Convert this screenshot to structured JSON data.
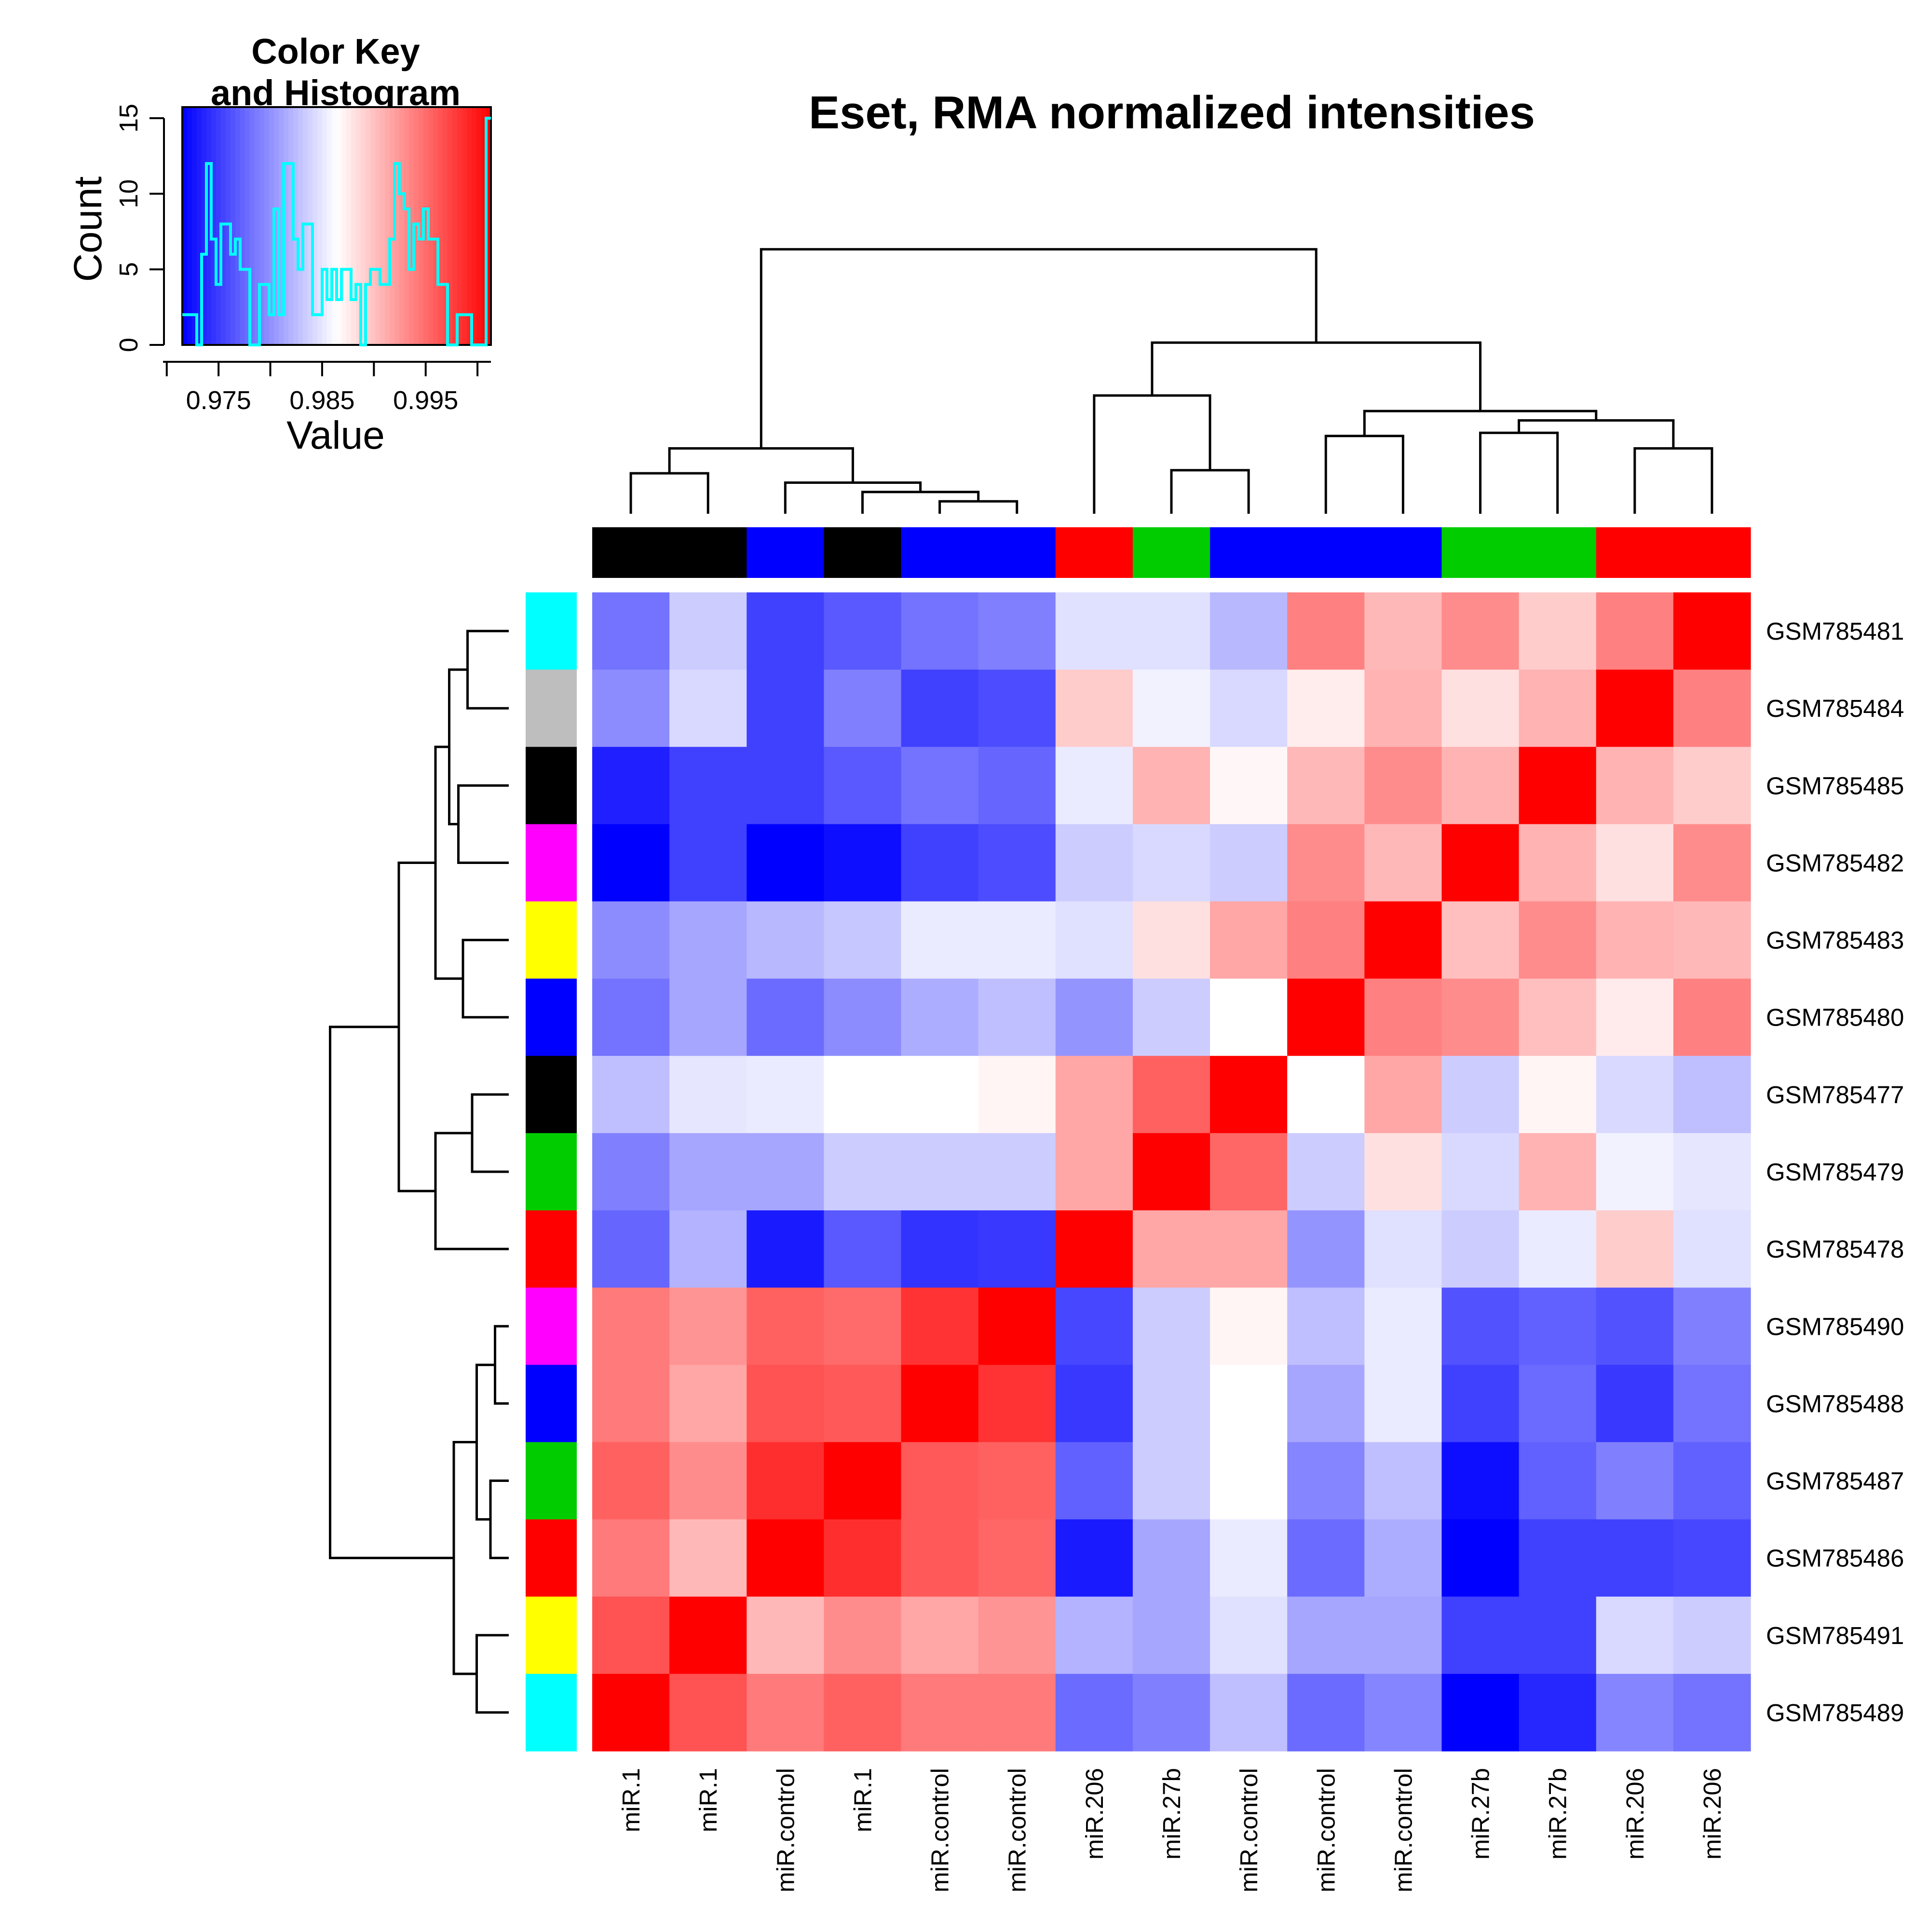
{
  "chart_data": {
    "type": "heatmap",
    "title": "Eset, RMA normalized intensities",
    "columns": [
      "miR.1",
      "miR.1",
      "miR.control",
      "miR.1",
      "miR.control",
      "miR.control",
      "miR.206",
      "miR.27b",
      "miR.control",
      "miR.control",
      "miR.control",
      "miR.27b",
      "miR.27b",
      "miR.206",
      "miR.206"
    ],
    "rows": [
      "GSM785481",
      "GSM785484",
      "GSM785485",
      "GSM785482",
      "GSM785483",
      "GSM785480",
      "GSM785477",
      "GSM785479",
      "GSM785478",
      "GSM785490",
      "GSM785488",
      "GSM785487",
      "GSM785486",
      "GSM785491",
      "GSM785489"
    ],
    "column_side_colors": [
      "#000000",
      "#000000",
      "#0000ff",
      "#000000",
      "#0000ff",
      "#0000ff",
      "#ff0000",
      "#00cc00",
      "#0000ff",
      "#0000ff",
      "#0000ff",
      "#00cc00",
      "#00cc00",
      "#ff0000",
      "#ff0000"
    ],
    "row_side_colors": [
      "#00ffff",
      "#bebebe",
      "#000000",
      "#ff00ff",
      "#ffff00",
      "#0000ff",
      "#000000",
      "#00cc00",
      "#ff0000",
      "#ff00ff",
      "#0000ff",
      "#00cc00",
      "#ff0000",
      "#ffff00",
      "#00ffff"
    ],
    "values": [
      [
        -0.55,
        -0.2,
        -0.75,
        -0.65,
        -0.55,
        -0.5,
        -0.12,
        -0.12,
        -0.28,
        0.5,
        0.28,
        0.45,
        0.2,
        0.5,
        1.0
      ],
      [
        -0.45,
        -0.15,
        -0.75,
        -0.5,
        -0.75,
        -0.7,
        0.2,
        -0.05,
        -0.15,
        0.07,
        0.3,
        0.12,
        0.3,
        1.0,
        0.5
      ],
      [
        -0.88,
        -0.75,
        -0.75,
        -0.65,
        -0.55,
        -0.6,
        -0.08,
        0.3,
        0.03,
        0.28,
        0.45,
        0.3,
        1.0,
        0.3,
        0.2
      ],
      [
        -1.0,
        -0.75,
        -1.0,
        -0.95,
        -0.75,
        -0.7,
        -0.2,
        -0.15,
        -0.2,
        0.45,
        0.28,
        1.0,
        0.3,
        0.12,
        0.45
      ],
      [
        -0.45,
        -0.35,
        -0.28,
        -0.22,
        -0.08,
        -0.08,
        -0.12,
        0.12,
        0.35,
        0.5,
        1.0,
        0.25,
        0.45,
        0.3,
        0.28
      ],
      [
        -0.55,
        -0.35,
        -0.58,
        -0.45,
        -0.32,
        -0.25,
        -0.42,
        -0.2,
        0.0,
        1.0,
        0.5,
        0.45,
        0.25,
        0.08,
        0.5
      ],
      [
        -0.25,
        -0.1,
        -0.08,
        0.0,
        0.0,
        0.04,
        0.35,
        0.62,
        1.0,
        0.0,
        0.35,
        -0.2,
        0.04,
        -0.15,
        -0.25
      ],
      [
        -0.5,
        -0.35,
        -0.35,
        -0.2,
        -0.2,
        -0.2,
        0.35,
        1.0,
        0.6,
        -0.2,
        0.12,
        -0.15,
        0.3,
        -0.05,
        -0.1
      ],
      [
        -0.6,
        -0.3,
        -0.9,
        -0.65,
        -0.8,
        -0.78,
        1.0,
        0.35,
        0.35,
        -0.42,
        -0.12,
        -0.2,
        -0.08,
        0.2,
        -0.12
      ],
      [
        0.52,
        0.42,
        0.62,
        0.58,
        0.8,
        1.0,
        -0.72,
        -0.2,
        0.04,
        -0.25,
        -0.08,
        -0.68,
        -0.62,
        -0.68,
        -0.5
      ],
      [
        0.52,
        0.35,
        0.68,
        0.65,
        1.0,
        0.8,
        -0.78,
        -0.2,
        0.0,
        -0.35,
        -0.08,
        -0.75,
        -0.58,
        -0.78,
        -0.55
      ],
      [
        0.62,
        0.45,
        0.82,
        1.0,
        0.65,
        0.62,
        -0.62,
        -0.2,
        0.0,
        -0.48,
        -0.25,
        -0.95,
        -0.62,
        -0.5,
        -0.62
      ],
      [
        0.52,
        0.28,
        1.0,
        0.82,
        0.65,
        0.6,
        -0.9,
        -0.35,
        -0.08,
        -0.58,
        -0.32,
        -1.0,
        -0.75,
        -0.75,
        -0.72
      ],
      [
        0.68,
        1.0,
        0.28,
        0.45,
        0.35,
        0.42,
        -0.3,
        -0.35,
        -0.12,
        -0.35,
        -0.35,
        -0.75,
        -0.75,
        -0.15,
        -0.2
      ],
      [
        1.0,
        0.68,
        0.52,
        0.62,
        0.52,
        0.52,
        -0.58,
        -0.5,
        -0.25,
        -0.58,
        -0.48,
        -1.0,
        -0.85,
        -0.48,
        -0.55
      ]
    ],
    "color_scale": {
      "low": "#0000ff",
      "mid": "#ffffff",
      "high": "#ff0000"
    },
    "color_key": {
      "title_line1": "Color Key",
      "title_line2": "and Histogram",
      "xlabel": "Value",
      "ylabel": "Count",
      "x_ticks": [
        "0.975",
        "0.985",
        "0.995"
      ],
      "y_ticks": [
        "0",
        "5",
        "10",
        "15"
      ],
      "histogram_color": "#00ffff",
      "histogram_counts": [
        2,
        2,
        2,
        0,
        6,
        12,
        7,
        4,
        8,
        8,
        6,
        7,
        5,
        5,
        0,
        0,
        4,
        4,
        2,
        9,
        2,
        12,
        12,
        7,
        5,
        8,
        8,
        2,
        2,
        5,
        3,
        5,
        3,
        5,
        5,
        3,
        4,
        0,
        4,
        5,
        5,
        4,
        4,
        7,
        12,
        10,
        9,
        5,
        8,
        7,
        9,
        7,
        7,
        4,
        4,
        0,
        0,
        2,
        2,
        2,
        0,
        0,
        0,
        15
      ]
    }
  }
}
